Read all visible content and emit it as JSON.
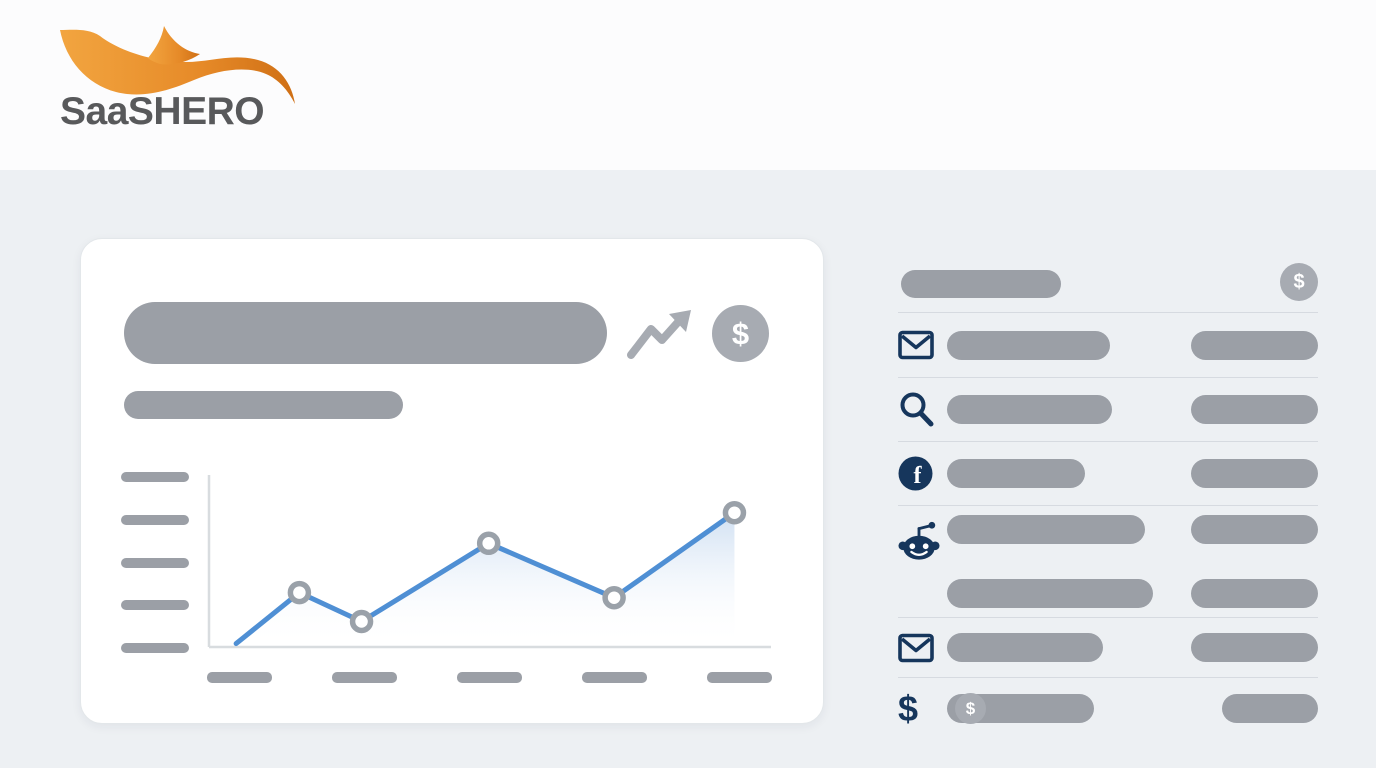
{
  "brand": {
    "name": "SaaSHERO"
  },
  "symbols": {
    "dollar": "$"
  },
  "colors": {
    "page_bg": "#edf0f3",
    "header_bg": "#fcfcfd",
    "card_bg": "#ffffff",
    "placeholder_gray": "#9b9fa6",
    "icon_gray": "#a7abb2",
    "divider": "#d6dae0",
    "navy": "#16365c",
    "swoosh_orange_start": "#f2a540",
    "swoosh_orange_end": "#cf6f15",
    "chart_line_blue": "#4f8fd4"
  },
  "card": {
    "icons": [
      "trending-up",
      "dollar-circle"
    ],
    "placeholders": {
      "title": true,
      "subtitle": true
    }
  },
  "chart_data": {
    "type": "line",
    "title": "",
    "xlabel": "",
    "ylabel": "",
    "points_pct": [
      {
        "x": 4.8,
        "y": 2
      },
      {
        "x": 16.0,
        "y": 32
      },
      {
        "x": 27.0,
        "y": 15
      },
      {
        "x": 49.5,
        "y": 61
      },
      {
        "x": 71.7,
        "y": 29
      },
      {
        "x": 93.0,
        "y": 79
      }
    ],
    "marker_point_indices": [
      1,
      2,
      3,
      4,
      5
    ],
    "area_fill": true,
    "grid": false,
    "legend": false,
    "y_axis_placeholder_ticks": 5,
    "x_axis_placeholder_ticks": 5,
    "line_color": "#4f8fd4",
    "marker_stroke": "#9aa1a9",
    "axis_color": "#d8dcdf"
  },
  "right_panel": {
    "header": {
      "icon": "dollar-circle"
    },
    "rows": [
      {
        "icon": "envelope",
        "lines": 1
      },
      {
        "icon": "search",
        "lines": 1
      },
      {
        "icon": "facebook",
        "lines": 1
      },
      {
        "icon": "reddit",
        "lines": 2
      },
      {
        "icon": "envelope",
        "lines": 1
      },
      {
        "icon": "dollar",
        "lines": 1,
        "trailing_icon": "dollar-circle"
      }
    ]
  }
}
